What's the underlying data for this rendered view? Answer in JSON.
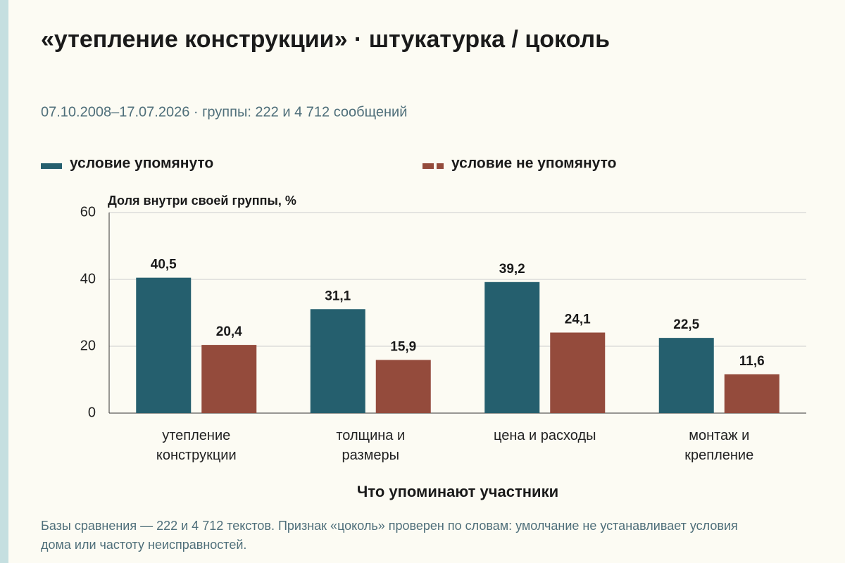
{
  "chart_data": {
    "type": "bar",
    "title": "«утепление конструкции» · штукатурка / цоколь",
    "subtitle": "07.10.2008–17.07.2026 · группы: 222 и 4 712 сообщений",
    "y_label": "Доля внутри своей группы, %",
    "x_label": "Что упоминают участники",
    "note": "Базы сравнения — 222 и 4 712 текстов. Признак «цоколь» проверен по словам: умолчание не устанавливает условия дома или частоту неисправностей.",
    "categories": [
      "утепление конструкции",
      "толщина и размеры",
      "цена и расходы",
      "монтаж и крепление"
    ],
    "series": [
      {
        "name": "условие упомянуто",
        "color": "#255f6e",
        "values": [
          40.5,
          31.1,
          39.2,
          22.5
        ],
        "value_labels": [
          "40,5",
          "31,1",
          "39,2",
          "22,5"
        ]
      },
      {
        "name": "условие не упомянуто",
        "color": "#944b3c",
        "values": [
          20.4,
          15.9,
          24.1,
          11.6
        ],
        "value_labels": [
          "20,4",
          "15,9",
          "24,1",
          "11,6"
        ]
      }
    ],
    "ylim": [
      0,
      60
    ],
    "yticks": [
      0,
      20,
      40,
      60
    ],
    "grid": true
  }
}
